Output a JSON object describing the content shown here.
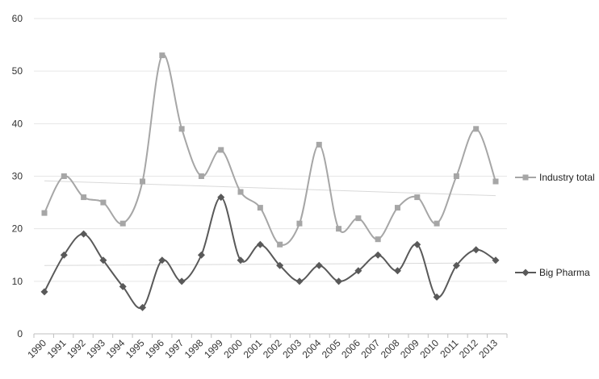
{
  "chart_data": {
    "type": "line",
    "title": "",
    "xlabel": "",
    "ylabel": "",
    "ylim": [
      0,
      60
    ],
    "yticks": [
      0,
      10,
      20,
      30,
      40,
      50,
      60
    ],
    "grid": true,
    "legend_position": "right",
    "categories": [
      "1990",
      "1991",
      "1992",
      "1993",
      "1994",
      "1995",
      "1996",
      "1997",
      "1998",
      "1999",
      "2000",
      "2001",
      "2002",
      "2003",
      "2004",
      "2005",
      "2006",
      "2007",
      "2008",
      "2009",
      "2010",
      "2011",
      "2012",
      "2013"
    ],
    "series": [
      {
        "name": "Industry total",
        "color": "#a6a6a6",
        "marker": "square",
        "values": [
          23,
          30,
          26,
          25,
          21,
          29,
          53,
          39,
          30,
          35,
          27,
          24,
          17,
          21,
          36,
          20,
          22,
          18,
          24,
          26,
          21,
          30,
          39,
          29
        ],
        "trendline": true
      },
      {
        "name": "Big Pharma",
        "color": "#595959",
        "marker": "diamond",
        "values": [
          8,
          15,
          19,
          14,
          9,
          5,
          14,
          10,
          15,
          26,
          14,
          17,
          13,
          10,
          13,
          10,
          12,
          15,
          12,
          17,
          7,
          13,
          16,
          14
        ],
        "trendline": true
      }
    ]
  }
}
